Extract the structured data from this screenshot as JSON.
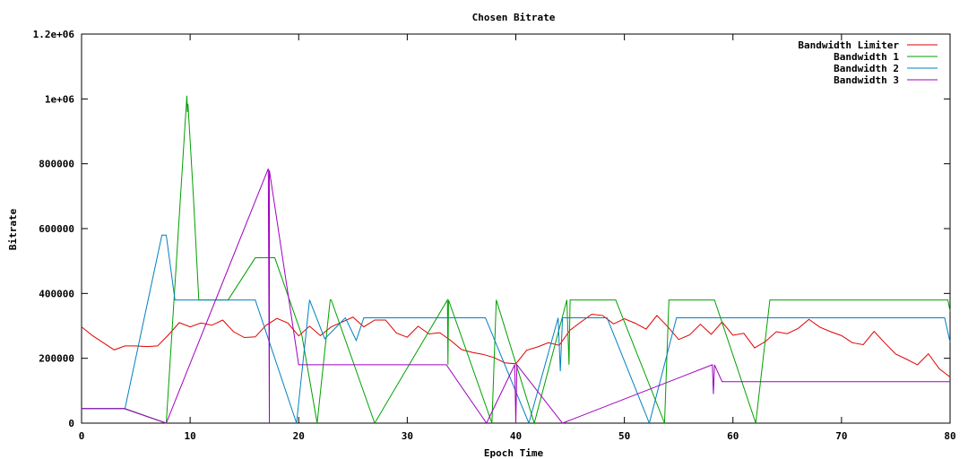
{
  "chart_data": {
    "type": "line",
    "title": "Chosen Bitrate",
    "xlabel": "Epoch Time",
    "ylabel": "Bitrate",
    "xlim": [
      0,
      80
    ],
    "ylim": [
      0,
      1200000
    ],
    "x_ticks": [
      0,
      10,
      20,
      30,
      40,
      50,
      60,
      70,
      80
    ],
    "y_ticks": [
      0,
      200000,
      400000,
      600000,
      800000,
      1000000,
      1200000
    ],
    "x_tick_labels": [
      "0",
      "10",
      "20",
      "30",
      "40",
      "50",
      "60",
      "70",
      "80"
    ],
    "y_tick_labels": [
      "0",
      "200000",
      "400000",
      "600000",
      "800000",
      "1e+06",
      "1.2e+06"
    ],
    "grid": false,
    "legend_position": "top-right",
    "series": [
      {
        "name": "Bandwidth Limiter",
        "color": "#e00000",
        "points": [
          [
            0,
            297000
          ],
          [
            1,
            270000
          ],
          [
            2,
            248000
          ],
          [
            3,
            226000
          ],
          [
            4,
            238000
          ],
          [
            5,
            238000
          ],
          [
            6,
            236000
          ],
          [
            7,
            238000
          ],
          [
            8,
            272000
          ],
          [
            9,
            310000
          ],
          [
            10,
            297000
          ],
          [
            11,
            309000
          ],
          [
            12,
            302000
          ],
          [
            13,
            318000
          ],
          [
            14,
            282000
          ],
          [
            15,
            264000
          ],
          [
            16,
            266000
          ],
          [
            17,
            302000
          ],
          [
            18,
            323000
          ],
          [
            19,
            309000
          ],
          [
            20,
            269000
          ],
          [
            21,
            299000
          ],
          [
            22,
            270000
          ],
          [
            23,
            297000
          ],
          [
            24,
            312000
          ],
          [
            25,
            327000
          ],
          [
            26,
            297000
          ],
          [
            27,
            318000
          ],
          [
            28,
            318000
          ],
          [
            29,
            278000
          ],
          [
            30,
            265000
          ],
          [
            31,
            299000
          ],
          [
            32,
            275000
          ],
          [
            33,
            279000
          ],
          [
            34,
            255000
          ],
          [
            35,
            227000
          ],
          [
            36,
            218000
          ],
          [
            37,
            212000
          ],
          [
            38,
            202000
          ],
          [
            39,
            186000
          ],
          [
            40,
            183000
          ],
          [
            41,
            225000
          ],
          [
            42,
            235000
          ],
          [
            43,
            248000
          ],
          [
            44,
            240000
          ],
          [
            45,
            287000
          ],
          [
            46,
            312000
          ],
          [
            47,
            336000
          ],
          [
            48,
            332000
          ],
          [
            49,
            306000
          ],
          [
            50,
            322000
          ],
          [
            51,
            308000
          ],
          [
            52,
            290000
          ],
          [
            53,
            332000
          ],
          [
            54,
            297000
          ],
          [
            55,
            258000
          ],
          [
            56,
            272000
          ],
          [
            57,
            305000
          ],
          [
            58,
            274000
          ],
          [
            59,
            312000
          ],
          [
            60,
            271000
          ],
          [
            61,
            277000
          ],
          [
            62,
            232000
          ],
          [
            63,
            252000
          ],
          [
            64,
            282000
          ],
          [
            65,
            276000
          ],
          [
            66,
            292000
          ],
          [
            67,
            320000
          ],
          [
            68,
            296000
          ],
          [
            69,
            282000
          ],
          [
            70,
            270000
          ],
          [
            71,
            248000
          ],
          [
            72,
            242000
          ],
          [
            73,
            283000
          ],
          [
            74,
            247000
          ],
          [
            75,
            213000
          ],
          [
            76,
            197000
          ],
          [
            77,
            180000
          ],
          [
            78,
            214000
          ],
          [
            79,
            168000
          ],
          [
            80,
            142000
          ]
        ]
      },
      {
        "name": "Bandwidth 1",
        "color": "#00a000",
        "points": [
          [
            0,
            45000
          ],
          [
            4,
            45000
          ],
          [
            7.8,
            0
          ],
          [
            9.7,
            1010000
          ],
          [
            9.75,
            960000
          ],
          [
            9.8,
            985000
          ],
          [
            10.3,
            700000
          ],
          [
            10.8,
            380000
          ],
          [
            13.5,
            380000
          ],
          [
            16,
            510000
          ],
          [
            17.8,
            510000
          ],
          [
            20.3,
            270000
          ],
          [
            21.7,
            0
          ],
          [
            22.9,
            380000
          ],
          [
            23,
            380000
          ],
          [
            27,
            0
          ],
          [
            33.7,
            380000
          ],
          [
            33.75,
            180000
          ],
          [
            33.8,
            380000
          ],
          [
            37.8,
            0
          ],
          [
            38.2,
            380000
          ],
          [
            41.7,
            0
          ],
          [
            44.7,
            380000
          ],
          [
            44.9,
            180000
          ],
          [
            45,
            380000
          ],
          [
            49.2,
            380000
          ],
          [
            53.7,
            0
          ],
          [
            54.1,
            380000
          ],
          [
            58.3,
            380000
          ],
          [
            62.1,
            0
          ],
          [
            63.4,
            380000
          ],
          [
            79.8,
            380000
          ],
          [
            80,
            345000
          ]
        ]
      },
      {
        "name": "Bandwidth 2",
        "color": "#0080c0",
        "points": [
          [
            0,
            45000
          ],
          [
            4,
            45000
          ],
          [
            7.4,
            580000
          ],
          [
            7.8,
            580000
          ],
          [
            8.6,
            380000
          ],
          [
            16,
            380000
          ],
          [
            19.8,
            0
          ],
          [
            21,
            380000
          ],
          [
            22.4,
            260000
          ],
          [
            24.3,
            325000
          ],
          [
            25.3,
            255000
          ],
          [
            26,
            325000
          ],
          [
            37.2,
            325000
          ],
          [
            41.2,
            0
          ],
          [
            43.9,
            325000
          ],
          [
            44.1,
            160000
          ],
          [
            44.3,
            325000
          ],
          [
            48.4,
            325000
          ],
          [
            52.3,
            0
          ],
          [
            54.8,
            325000
          ],
          [
            79.5,
            325000
          ],
          [
            80,
            250000
          ]
        ]
      },
      {
        "name": "Bandwidth 3",
        "color": "#a000c0",
        "points": [
          [
            0,
            45000
          ],
          [
            3.9,
            45000
          ],
          [
            7.8,
            0
          ],
          [
            17.2,
            785000
          ],
          [
            17.3,
            0
          ],
          [
            17.3,
            780000
          ],
          [
            20,
            180000
          ],
          [
            33.6,
            180000
          ],
          [
            37.3,
            0
          ],
          [
            39.9,
            180000
          ],
          [
            40,
            0
          ],
          [
            40.1,
            180000
          ],
          [
            44.3,
            0
          ],
          [
            58.1,
            180000
          ],
          [
            58.2,
            90000
          ],
          [
            58.3,
            180000
          ],
          [
            59,
            128000
          ],
          [
            80,
            128000
          ]
        ]
      }
    ]
  }
}
